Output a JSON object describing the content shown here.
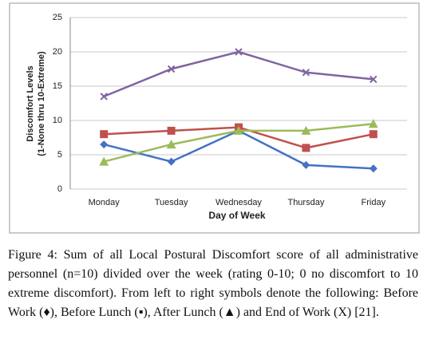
{
  "chart_data": {
    "type": "line",
    "x_label": "Day of Week",
    "y_label": [
      "Discomfort Levels",
      "(1-None thru 10-Extreme)"
    ],
    "categories": [
      "Monday",
      "Tuesday",
      "Wednesday",
      "Thursday",
      "Friday"
    ],
    "series": [
      {
        "color": "#4472c4",
        "marker": "diamond",
        "values": [
          6.5,
          4,
          8.5,
          3.5,
          3
        ]
      },
      {
        "color": "#c0504d",
        "marker": "square",
        "values": [
          8,
          8.5,
          9,
          6,
          8
        ]
      },
      {
        "color": "#9bbb59",
        "marker": "triangle",
        "values": [
          4,
          6.5,
          8.5,
          8.5,
          9.5
        ]
      },
      {
        "color": "#8064a2",
        "marker": "x",
        "values": [
          13.5,
          17.5,
          20,
          17,
          16
        ]
      }
    ],
    "ylim": [
      0,
      25
    ],
    "yticks": [
      0,
      5,
      10,
      15,
      20,
      25
    ],
    "grid": true,
    "caption": "Figure 4: Sum of all Local Postural Discomfort score of all administrative personnel (n=10) divided over the week (rating 0-10; 0 no discomfort to 10 extreme discomfort). From left to right symbols denote the following: Before Work (♦), Before Lunch (▪), After Lunch (▲) and End of Work (X) [21]."
  }
}
